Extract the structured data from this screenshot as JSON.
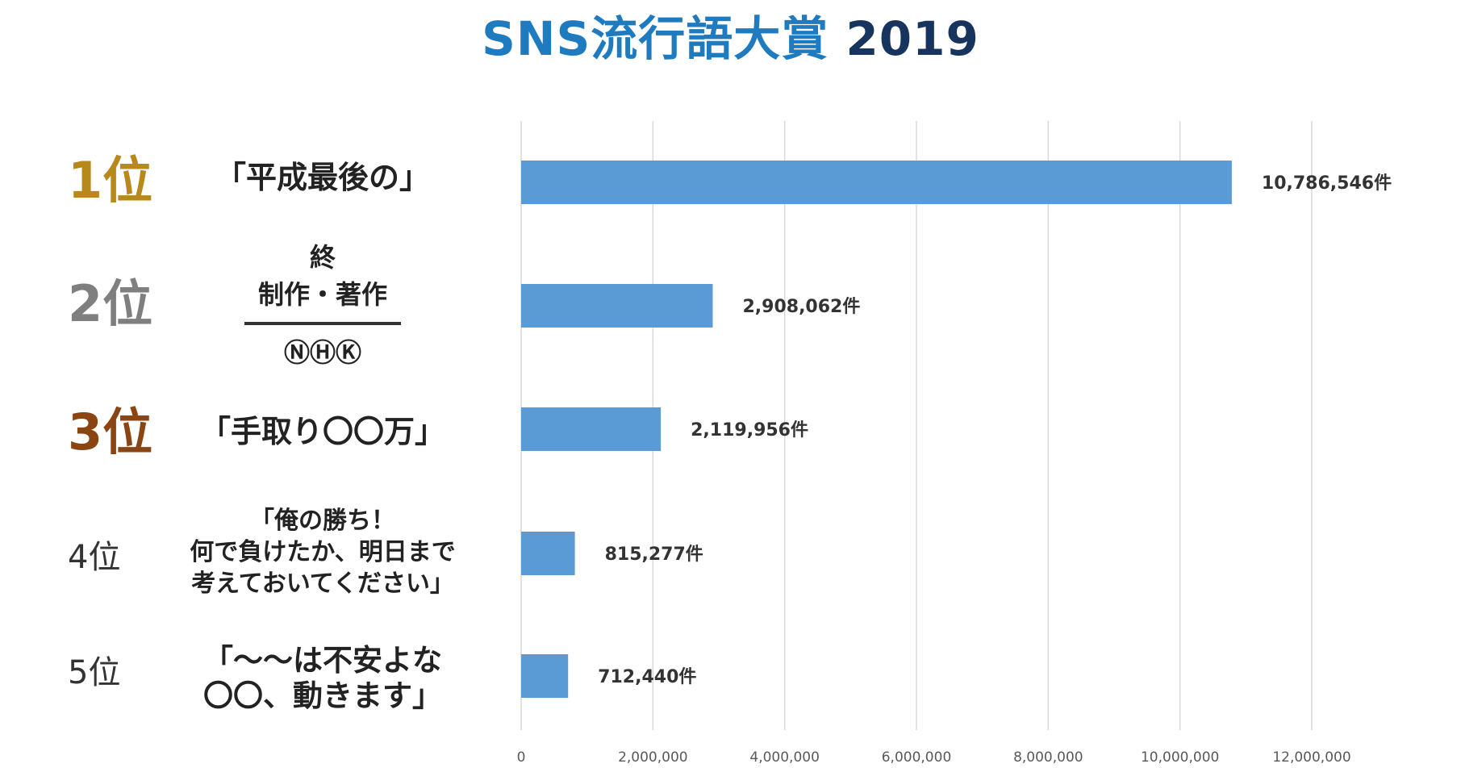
{
  "title": {
    "main": "SNS流行語大賞",
    "year": "2019"
  },
  "colors": {
    "title_main": "#1f7bc0",
    "title_year": "#17345f",
    "bar": "#5b9bd5",
    "gridline": "#d9d9d9",
    "rank1": "#b8891a",
    "rank2": "#7f7f7f",
    "rank3": "#8b4513",
    "rank_other": "#333333"
  },
  "entries": [
    {
      "rank": "1位",
      "phrase": "「平成最後の」",
      "count_label": "10,786,546件"
    },
    {
      "rank": "2位",
      "phrase_top_1": "終",
      "phrase_top_2": "制作・著作",
      "phrase_bottom": "ⓃⒽⓀ",
      "count_label": "2,908,062件"
    },
    {
      "rank": "3位",
      "phrase": "「手取り〇〇万」",
      "count_label": "2,119,956件"
    },
    {
      "rank": "4位",
      "phrase_lines": [
        "「俺の勝ち！",
        "何で負けたか、明日まで",
        "考えておいてください」"
      ],
      "count_label": "815,277件"
    },
    {
      "rank": "5位",
      "phrase_lines": [
        "「～～は不安よな",
        "〇〇、動きます」"
      ],
      "count_label": "712,440件"
    }
  ],
  "chart_data": {
    "type": "bar",
    "orientation": "horizontal",
    "title": "SNS流行語大賞 2019",
    "categories": [
      "「平成最後の」",
      "終 制作・著作 ⓃⒽⓀ",
      "「手取り〇〇万」",
      "「俺の勝ち！何で負けたか、明日まで考えておいてください」",
      "「～～は不安よな〇〇、動きます」"
    ],
    "values": [
      10786546,
      2908062,
      2119956,
      815277,
      712440
    ],
    "value_labels": [
      "10,786,546件",
      "2,908,062件",
      "2,119,956件",
      "815,277件",
      "712,440件"
    ],
    "xlim": [
      0,
      12000000
    ],
    "xticks": [
      0,
      2000000,
      4000000,
      6000000,
      8000000,
      10000000,
      12000000
    ],
    "xtick_labels": [
      "0",
      "2,000,000",
      "4,000,000",
      "6,000,000",
      "8,000,000",
      "10,000,000",
      "12,000,000"
    ],
    "grid": true,
    "xlabel": "",
    "ylabel": ""
  }
}
